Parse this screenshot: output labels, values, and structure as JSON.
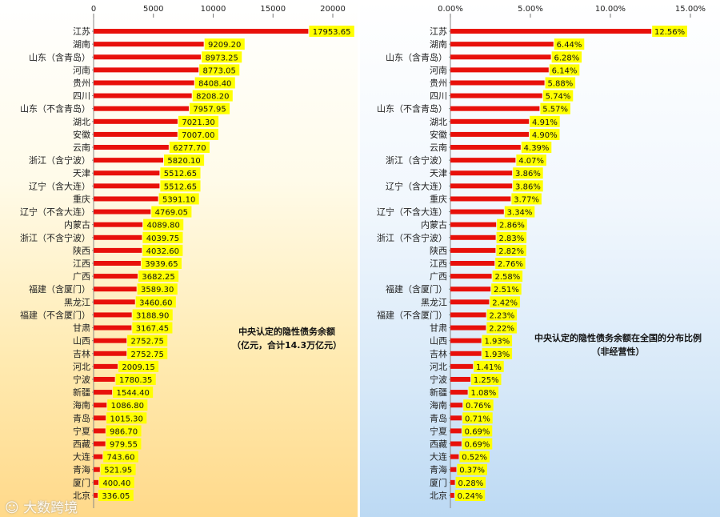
{
  "chart_data": [
    {
      "type": "bar",
      "orientation": "horizontal",
      "title": "中央认定的隐性债务余额",
      "subtitle": "（亿元，合计14.3万亿元）",
      "xlim": [
        0,
        20000
      ],
      "ticks": [
        "0",
        "5000",
        "10000",
        "15000",
        "20000"
      ],
      "tick_values": [
        0,
        5000,
        10000,
        15000,
        20000
      ],
      "bar_color": "#e8100a",
      "label_bg": "#ffff00",
      "categories": [
        "江苏",
        "湖南",
        "山东（含青岛）",
        "河南",
        "贵州",
        "四川",
        "山东（不含青岛）",
        "湖北",
        "安徽",
        "云南",
        "浙江（含宁波）",
        "天津",
        "辽宁（含大连）",
        "重庆",
        "辽宁（不含大连）",
        "内蒙古",
        "浙江（不含宁波）",
        "陕西",
        "江西",
        "广西",
        "福建（含厦门）",
        "黑龙江",
        "福建（不含厦门）",
        "甘肃",
        "山西",
        "吉林",
        "河北",
        "宁波",
        "新疆",
        "海南",
        "青岛",
        "宁夏",
        "西藏",
        "大连",
        "青海",
        "厦门",
        "北京"
      ],
      "values": [
        17953.65,
        9209.2,
        8973.25,
        8773.05,
        8408.4,
        8208.2,
        7957.95,
        7021.3,
        7007.0,
        6277.7,
        5820.1,
        5512.65,
        5512.65,
        5391.1,
        4769.05,
        4089.8,
        4039.75,
        4032.6,
        3939.65,
        3682.25,
        3589.3,
        3460.6,
        3188.9,
        3167.45,
        2752.75,
        2752.75,
        2009.15,
        1780.35,
        1544.4,
        1086.8,
        1015.3,
        986.7,
        979.55,
        743.6,
        521.95,
        400.4,
        336.05
      ],
      "labels": [
        "17953.65",
        "9209.20",
        "8973.25",
        "8773.05",
        "8408.40",
        "8208.20",
        "7957.95",
        "7021.30",
        "7007.00",
        "6277.70",
        "5820.10",
        "5512.65",
        "5512.65",
        "5391.10",
        "4769.05",
        "4089.80",
        "4039.75",
        "4032.60",
        "3939.65",
        "3682.25",
        "3589.30",
        "3460.60",
        "3188.90",
        "3167.45",
        "2752.75",
        "2752.75",
        "2009.15",
        "1780.35",
        "1544.40",
        "1086.80",
        "1015.30",
        "986.70",
        "979.55",
        "743.60",
        "521.95",
        "400.40",
        "336.05"
      ]
    },
    {
      "type": "bar",
      "orientation": "horizontal",
      "title": "中央认定的隐性债务余额在全国的分布比例",
      "subtitle": "（非经营性）",
      "xlim": [
        0,
        15
      ],
      "ticks": [
        "0.00%",
        "5.00%",
        "10.00%",
        "15.00%"
      ],
      "tick_values": [
        0,
        5,
        10,
        15
      ],
      "bar_color": "#e8100a",
      "label_bg": "#ffff00",
      "categories": [
        "江苏",
        "湖南",
        "山东（含青岛）",
        "河南",
        "贵州",
        "四川",
        "山东（不含青岛）",
        "湖北",
        "安徽",
        "云南",
        "浙江（含宁波）",
        "天津",
        "辽宁（含大连）",
        "重庆",
        "辽宁（不含大连）",
        "内蒙古",
        "浙江（不含宁波）",
        "陕西",
        "江西",
        "广西",
        "福建（含厦门）",
        "黑龙江",
        "福建（不含厦门）",
        "甘肃",
        "山西",
        "吉林",
        "河北",
        "宁波",
        "新疆",
        "海南",
        "青岛",
        "宁夏",
        "西藏",
        "大连",
        "青海",
        "厦门",
        "北京"
      ],
      "values": [
        12.56,
        6.44,
        6.28,
        6.14,
        5.88,
        5.74,
        5.57,
        4.91,
        4.9,
        4.39,
        4.07,
        3.86,
        3.86,
        3.77,
        3.34,
        2.86,
        2.83,
        2.82,
        2.76,
        2.58,
        2.51,
        2.42,
        2.23,
        2.22,
        1.93,
        1.93,
        1.41,
        1.25,
        1.08,
        0.76,
        0.71,
        0.69,
        0.69,
        0.52,
        0.37,
        0.28,
        0.24
      ],
      "labels": [
        "12.56%",
        "6.44%",
        "6.28%",
        "6.14%",
        "5.88%",
        "5.74%",
        "5.57%",
        "4.91%",
        "4.90%",
        "4.39%",
        "4.07%",
        "3.86%",
        "3.86%",
        "3.77%",
        "3.34%",
        "2.86%",
        "2.83%",
        "2.82%",
        "2.76%",
        "2.58%",
        "2.51%",
        "2.42%",
        "2.23%",
        "2.22%",
        "1.93%",
        "1.93%",
        "1.41%",
        "1.25%",
        "1.08%",
        "0.76%",
        "0.71%",
        "0.69%",
        "0.69%",
        "0.52%",
        "0.37%",
        "0.28%",
        "0.24%"
      ]
    }
  ],
  "watermark": "大数跨境"
}
